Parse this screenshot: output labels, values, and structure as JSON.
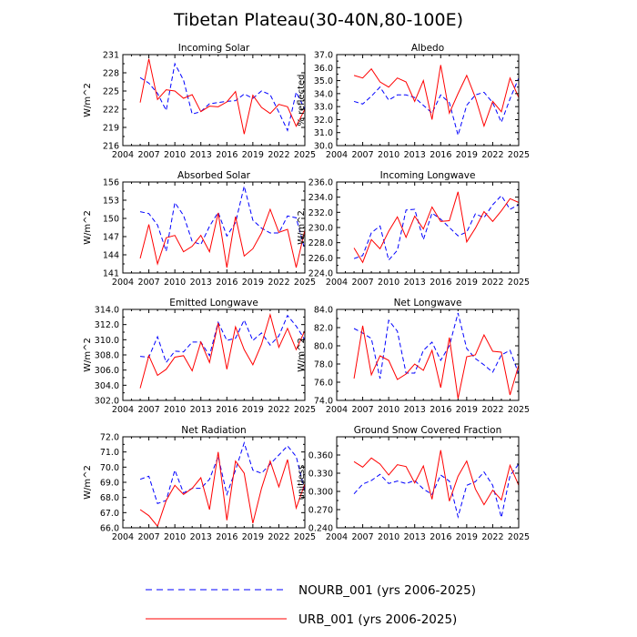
{
  "figure_title": "Tibetan Plateau(30-40N,80-100E)",
  "colors": {
    "urb": "#ff0000",
    "nourb": "#0000ff",
    "axis": "#000000"
  },
  "legend": [
    {
      "label": "NOURB_001 (yrs 2006-2025)",
      "style": "dashed",
      "color": "#0000ff"
    },
    {
      "label": "URB_001 (yrs 2006-2025)",
      "style": "solid",
      "color": "#ff0000"
    }
  ],
  "chart_data": [
    {
      "type": "line",
      "title": "Incoming Solar",
      "ylabel": "W/m^2",
      "xlim": [
        2004,
        2025
      ],
      "ylim": [
        216,
        231
      ],
      "xticks": [
        2004,
        2007,
        2010,
        2013,
        2016,
        2019,
        2022,
        2025
      ],
      "xtick_labels": [
        "2004",
        "2007",
        "2010",
        "2013",
        "2016",
        "2019",
        "2022",
        "2025"
      ],
      "yticks": [
        216,
        219,
        222,
        225,
        228,
        231
      ],
      "ytick_labels": [
        "216",
        "219",
        "222",
        "225",
        "228",
        "231"
      ],
      "x": [
        2006,
        2007,
        2008,
        2009,
        2010,
        2011,
        2012,
        2013,
        2014,
        2015,
        2016,
        2017,
        2018,
        2019,
        2020,
        2021,
        2022,
        2023,
        2024,
        2025
      ],
      "series": [
        {
          "name": "NOURB_001 (yrs 2006-2025)",
          "style": "dashed",
          "values": [
            227.2,
            226.3,
            224.6,
            221.8,
            229.5,
            226.8,
            221.2,
            221.6,
            222.9,
            223.1,
            223.3,
            223.4,
            224.5,
            223.8,
            225.0,
            224.4,
            221.5,
            218.5,
            224.8,
            222.0
          ]
        },
        {
          "name": "URB_001 (yrs 2006-2025)",
          "style": "solid",
          "values": [
            223.1,
            230.3,
            223.6,
            225.2,
            225.0,
            223.8,
            224.4,
            221.6,
            222.5,
            222.4,
            223.2,
            224.9,
            217.9,
            224.3,
            222.3,
            221.3,
            222.8,
            222.4,
            219.2,
            222.0
          ]
        }
      ]
    },
    {
      "type": "line",
      "title": "Albedo",
      "ylabel": "% reflected",
      "xlim": [
        2004,
        2025
      ],
      "ylim": [
        30.0,
        37.0
      ],
      "xticks": [
        2004,
        2007,
        2010,
        2013,
        2016,
        2019,
        2022,
        2025
      ],
      "xtick_labels": [
        "2004",
        "2007",
        "2010",
        "2013",
        "2016",
        "2019",
        "2022",
        "2025"
      ],
      "yticks": [
        30,
        31,
        32,
        33,
        34,
        35,
        36,
        37
      ],
      "ytick_labels": [
        "30.0",
        "31.0",
        "32.0",
        "33.0",
        "34.0",
        "35.0",
        "36.0",
        "37.0"
      ],
      "x": [
        2006,
        2007,
        2008,
        2009,
        2010,
        2011,
        2012,
        2013,
        2014,
        2015,
        2016,
        2017,
        2018,
        2019,
        2020,
        2021,
        2022,
        2023,
        2024,
        2025
      ],
      "series": [
        {
          "name": "NOURB_001 (yrs 2006-2025)",
          "style": "dashed",
          "values": [
            33.4,
            33.2,
            33.8,
            34.5,
            33.5,
            33.9,
            33.9,
            33.7,
            33.1,
            32.5,
            33.9,
            33.3,
            30.8,
            33.1,
            33.9,
            34.1,
            33.3,
            31.8,
            33.6,
            35.2
          ]
        },
        {
          "name": "URB_001 (yrs 2006-2025)",
          "style": "solid",
          "values": [
            35.4,
            35.2,
            35.9,
            34.9,
            34.5,
            35.2,
            34.9,
            33.4,
            35.0,
            32.0,
            36.2,
            32.5,
            34.0,
            35.4,
            33.7,
            31.5,
            33.4,
            32.6,
            35.2,
            33.7
          ]
        }
      ]
    },
    {
      "type": "line",
      "title": "Absorbed Solar",
      "ylabel": "W/m^2",
      "xlim": [
        2004,
        2025
      ],
      "ylim": [
        141,
        156
      ],
      "xticks": [
        2004,
        2007,
        2010,
        2013,
        2016,
        2019,
        2022,
        2025
      ],
      "xtick_labels": [
        "2004",
        "2007",
        "2010",
        "2013",
        "2016",
        "2019",
        "2022",
        "2025"
      ],
      "yticks": [
        141,
        144,
        147,
        150,
        153,
        156
      ],
      "ytick_labels": [
        "141",
        "144",
        "147",
        "150",
        "153",
        "156"
      ],
      "x": [
        2006,
        2007,
        2008,
        2009,
        2010,
        2011,
        2012,
        2013,
        2014,
        2015,
        2016,
        2017,
        2018,
        2019,
        2020,
        2021,
        2022,
        2023,
        2024,
        2025
      ],
      "series": [
        {
          "name": "NOURB_001 (yrs 2006-2025)",
          "style": "dashed",
          "values": [
            151.1,
            150.8,
            148.9,
            144.6,
            152.6,
            150.5,
            146.2,
            145.7,
            148.7,
            151.0,
            147.1,
            149.3,
            155.3,
            149.7,
            148.4,
            147.6,
            147.6,
            150.4,
            150.1,
            144.8
          ]
        },
        {
          "name": "URB_001 (yrs 2006-2025)",
          "style": "solid",
          "values": [
            143.4,
            149.0,
            142.5,
            146.8,
            147.2,
            144.5,
            145.4,
            147.2,
            144.5,
            150.9,
            141.9,
            150.3,
            143.8,
            145.0,
            147.6,
            151.5,
            147.7,
            148.2,
            141.9,
            148.1
          ]
        }
      ]
    },
    {
      "type": "line",
      "title": "Incoming Longwave",
      "ylabel": "W/m^2",
      "xlim": [
        2004,
        2025
      ],
      "ylim": [
        224.0,
        236.0
      ],
      "xticks": [
        2004,
        2007,
        2010,
        2013,
        2016,
        2019,
        2022,
        2025
      ],
      "xtick_labels": [
        "2004",
        "2007",
        "2010",
        "2013",
        "2016",
        "2019",
        "2022",
        "2025"
      ],
      "yticks": [
        224,
        226,
        228,
        230,
        232,
        234,
        236
      ],
      "ytick_labels": [
        "224.0",
        "226.0",
        "228.0",
        "230.0",
        "232.0",
        "234.0",
        "236.0"
      ],
      "x": [
        2006,
        2007,
        2008,
        2009,
        2010,
        2011,
        2012,
        2013,
        2014,
        2015,
        2016,
        2017,
        2018,
        2019,
        2020,
        2021,
        2022,
        2023,
        2024,
        2025
      ],
      "series": [
        {
          "name": "NOURB_001 (yrs 2006-2025)",
          "style": "dashed",
          "values": [
            225.9,
            226.3,
            229.3,
            230.2,
            225.7,
            227.0,
            232.3,
            232.4,
            228.4,
            231.9,
            231.1,
            230.0,
            228.9,
            229.4,
            231.8,
            231.3,
            233.0,
            234.2,
            232.4,
            233.0
          ]
        },
        {
          "name": "URB_001 (yrs 2006-2025)",
          "style": "solid",
          "values": [
            227.3,
            225.4,
            228.4,
            227.2,
            229.5,
            231.4,
            228.7,
            231.5,
            229.8,
            232.7,
            230.8,
            230.9,
            234.7,
            228.1,
            229.9,
            232.1,
            230.8,
            232.2,
            233.8,
            233.3
          ]
        }
      ]
    },
    {
      "type": "line",
      "title": "Emitted Longwave",
      "ylabel": "W/m^2",
      "xlim": [
        2004,
        2025
      ],
      "ylim": [
        302.0,
        314.0
      ],
      "xticks": [
        2004,
        2007,
        2010,
        2013,
        2016,
        2019,
        2022,
        2025
      ],
      "xtick_labels": [
        "2004",
        "2007",
        "2010",
        "2013",
        "2016",
        "2019",
        "2022",
        "2025"
      ],
      "yticks": [
        302,
        304,
        306,
        308,
        310,
        312,
        314
      ],
      "ytick_labels": [
        "302.0",
        "304.0",
        "306.0",
        "308.0",
        "310.0",
        "312.0",
        "314.0"
      ],
      "x": [
        2006,
        2007,
        2008,
        2009,
        2010,
        2011,
        2012,
        2013,
        2014,
        2015,
        2016,
        2017,
        2018,
        2019,
        2020,
        2021,
        2022,
        2023,
        2024,
        2025
      ],
      "series": [
        {
          "name": "NOURB_001 (yrs 2006-2025)",
          "style": "dashed",
          "values": [
            307.8,
            307.7,
            310.4,
            307.0,
            308.5,
            308.4,
            309.7,
            309.7,
            307.9,
            312.3,
            309.9,
            310.2,
            312.6,
            309.9,
            310.9,
            309.3,
            310.5,
            313.2,
            311.8,
            310.0
          ]
        },
        {
          "name": "URB_001 (yrs 2006-2025)",
          "style": "solid",
          "values": [
            303.6,
            307.9,
            305.3,
            306.1,
            307.7,
            307.9,
            305.9,
            309.7,
            307.0,
            312.2,
            306.1,
            311.7,
            308.7,
            306.7,
            309.4,
            313.3,
            309.0,
            311.5,
            308.7,
            311.2
          ]
        }
      ]
    },
    {
      "type": "line",
      "title": "Net Longwave",
      "ylabel": "W/m^2",
      "xlim": [
        2004,
        2025
      ],
      "ylim": [
        74.0,
        84.0
      ],
      "xticks": [
        2004,
        2007,
        2010,
        2013,
        2016,
        2019,
        2022,
        2025
      ],
      "xtick_labels": [
        "2004",
        "2007",
        "2010",
        "2013",
        "2016",
        "2019",
        "2022",
        "2025"
      ],
      "yticks": [
        74,
        76,
        78,
        80,
        82,
        84
      ],
      "ytick_labels": [
        "74.0",
        "76.0",
        "78.0",
        "80.0",
        "82.0",
        "84.0"
      ],
      "x": [
        2006,
        2007,
        2008,
        2009,
        2010,
        2011,
        2012,
        2013,
        2014,
        2015,
        2016,
        2017,
        2018,
        2019,
        2020,
        2021,
        2022,
        2023,
        2024,
        2025
      ],
      "series": [
        {
          "name": "NOURB_001 (yrs 2006-2025)",
          "style": "dashed",
          "values": [
            81.9,
            81.4,
            80.8,
            76.4,
            82.8,
            81.6,
            77.0,
            77.0,
            79.5,
            80.4,
            78.4,
            80.0,
            83.6,
            79.7,
            78.6,
            77.9,
            77.1,
            79.0,
            79.5,
            76.9
          ]
        },
        {
          "name": "URB_001 (yrs 2006-2025)",
          "style": "solid",
          "values": [
            76.4,
            82.2,
            76.8,
            78.9,
            78.4,
            76.3,
            76.9,
            78.0,
            77.3,
            79.5,
            75.4,
            80.9,
            74.2,
            78.8,
            79.0,
            81.2,
            79.4,
            79.3,
            74.6,
            77.9
          ]
        }
      ]
    },
    {
      "type": "line",
      "title": "Net Radiation",
      "ylabel": "W/m^2",
      "xlim": [
        2004,
        2025
      ],
      "ylim": [
        66.0,
        72.0
      ],
      "xticks": [
        2004,
        2007,
        2010,
        2013,
        2016,
        2019,
        2022,
        2025
      ],
      "xtick_labels": [
        "2004",
        "2007",
        "2010",
        "2013",
        "2016",
        "2019",
        "2022",
        "2025"
      ],
      "yticks": [
        66,
        67,
        68,
        69,
        70,
        71,
        72
      ],
      "ytick_labels": [
        "66.0",
        "67.0",
        "68.0",
        "69.0",
        "70.0",
        "71.0",
        "72.0"
      ],
      "x": [
        2006,
        2007,
        2008,
        2009,
        2010,
        2011,
        2012,
        2013,
        2014,
        2015,
        2016,
        2017,
        2018,
        2019,
        2020,
        2021,
        2022,
        2023,
        2024,
        2025
      ],
      "series": [
        {
          "name": "NOURB_001 (yrs 2006-2025)",
          "style": "dashed",
          "values": [
            69.2,
            69.4,
            67.6,
            67.8,
            69.8,
            68.3,
            68.6,
            68.6,
            69.2,
            70.7,
            68.2,
            69.8,
            71.6,
            69.8,
            69.6,
            70.2,
            70.8,
            71.4,
            70.7,
            68.4
          ]
        },
        {
          "name": "URB_001 (yrs 2006-2025)",
          "style": "solid",
          "values": [
            67.2,
            66.8,
            66.1,
            67.8,
            68.8,
            68.2,
            68.6,
            69.3,
            67.2,
            71.0,
            66.5,
            70.4,
            69.6,
            66.3,
            68.6,
            70.4,
            68.7,
            70.5,
            67.3,
            68.9
          ]
        }
      ]
    },
    {
      "type": "line",
      "title": "Ground Snow Covered Fraction",
      "ylabel": "unitless",
      "xlim": [
        2004,
        2025
      ],
      "ylim": [
        0.24,
        0.39
      ],
      "xticks": [
        2004,
        2007,
        2010,
        2013,
        2016,
        2019,
        2022,
        2025
      ],
      "xtick_labels": [
        "2004",
        "2007",
        "2010",
        "2013",
        "2016",
        "2019",
        "2022",
        "2025"
      ],
      "yticks": [
        0.24,
        0.27,
        0.3,
        0.33,
        0.36
      ],
      "ytick_labels": [
        "0.240",
        "0.270",
        "0.300",
        "0.330",
        "0.360"
      ],
      "x": [
        2006,
        2007,
        2008,
        2009,
        2010,
        2011,
        2012,
        2013,
        2014,
        2015,
        2016,
        2017,
        2018,
        2019,
        2020,
        2021,
        2022,
        2023,
        2024,
        2025
      ],
      "series": [
        {
          "name": "NOURB_001 (yrs 2006-2025)",
          "style": "dashed",
          "values": [
            0.296,
            0.312,
            0.318,
            0.328,
            0.313,
            0.317,
            0.313,
            0.318,
            0.304,
            0.295,
            0.327,
            0.317,
            0.258,
            0.31,
            0.316,
            0.332,
            0.31,
            0.257,
            0.326,
            0.345
          ]
        },
        {
          "name": "URB_001 (yrs 2006-2025)",
          "style": "solid",
          "values": [
            0.349,
            0.34,
            0.355,
            0.345,
            0.327,
            0.344,
            0.341,
            0.314,
            0.342,
            0.287,
            0.368,
            0.284,
            0.325,
            0.35,
            0.304,
            0.278,
            0.302,
            0.286,
            0.343,
            0.31
          ]
        }
      ]
    }
  ]
}
